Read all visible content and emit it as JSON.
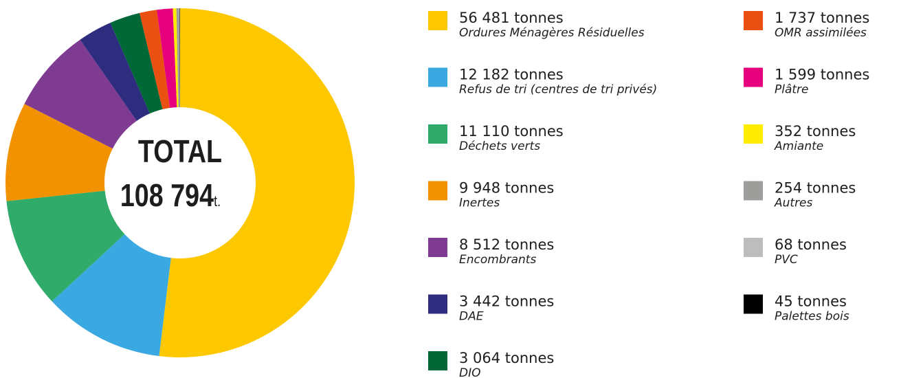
{
  "chart_data": {
    "type": "pie",
    "center_title": "TOTAL",
    "center_total": "108 794",
    "center_unit": "t.",
    "categories": [
      "Ordures Ménagères Résiduelles",
      "Refus de tri (centres de tri privés)",
      "Déchets verts",
      "Inertes",
      "Encombrants",
      "DAE",
      "DIO",
      "OMR assimilées",
      "Plâtre",
      "Amiante",
      "Autres",
      "PVC",
      "Palettes bois"
    ],
    "values": [
      56481,
      12182,
      11110,
      9948,
      8512,
      3442,
      3064,
      1737,
      1599,
      352,
      254,
      68,
      45
    ],
    "value_labels": [
      "56 481 tonnes",
      "12 182 tonnes",
      "11 110 tonnes",
      "9 948 tonnes",
      "8 512 tonnes",
      "3 442 tonnes",
      "3 064 tonnes",
      "1 737 tonnes",
      "1 599 tonnes",
      "352 tonnes",
      "254 tonnes",
      "68 tonnes",
      "45 tonnes"
    ],
    "colors": [
      "#fdc800",
      "#3aa9e1",
      "#30ab6a",
      "#f39200",
      "#7f3a92",
      "#2e2c7f",
      "#006837",
      "#e95012",
      "#e6007e",
      "#ffec00",
      "#9d9d9c",
      "#bdbdbd",
      "#000000"
    ]
  }
}
